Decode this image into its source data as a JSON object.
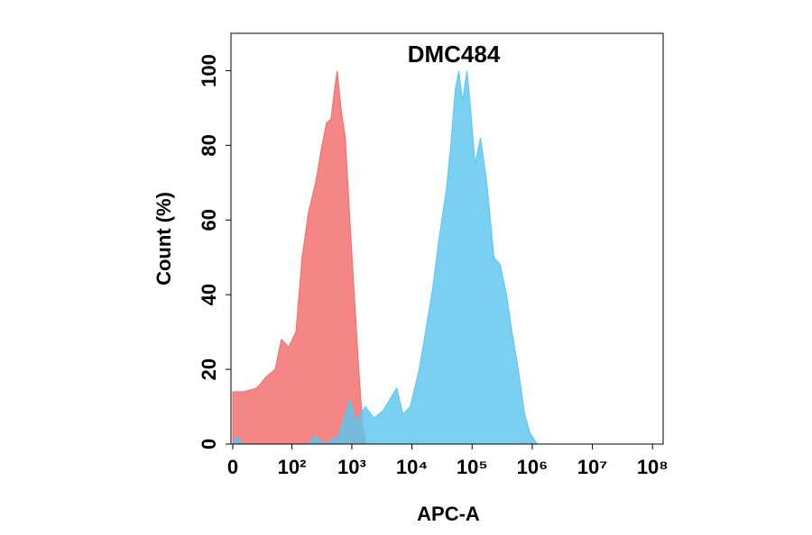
{
  "chart_data": {
    "type": "histogram-overlay",
    "title": "DMC484",
    "x_label": "APC-A",
    "y_label": "Count  (%)",
    "xscale": "biexponential",
    "xlim": [
      0,
      150000000
    ],
    "ylim": [
      0,
      110
    ],
    "xticks": [
      0,
      {
        "value": 100,
        "label": "10²"
      },
      {
        "value": 1000,
        "label": "10³"
      },
      {
        "value": 10000,
        "label": "10⁴"
      },
      {
        "value": 100000,
        "label": "10⁵"
      },
      {
        "value": 1000000,
        "label": "10⁶"
      },
      {
        "value": 10000000,
        "label": "10⁷"
      },
      {
        "value": 100000000,
        "label": "10⁸"
      }
    ],
    "yticks": [
      0,
      20,
      40,
      60,
      80,
      100
    ],
    "series": [
      {
        "color": "#f26b6b",
        "x": [
          0,
          9,
          22,
          35,
          51,
          66,
          88,
          117,
          148,
          190,
          250,
          319,
          379,
          450,
          517,
          573,
          658,
          781,
          929,
          1100,
          1310,
          1510,
          1730
        ],
        "values": [
          14,
          14,
          15,
          18,
          20,
          28,
          26,
          30,
          50,
          62,
          70,
          80,
          86,
          87,
          95,
          100,
          90,
          82,
          60,
          40,
          20,
          5,
          0
        ]
      },
      {
        "color": "#5cc6ee",
        "x": [
          0,
          3,
          9,
          177,
          250,
          353,
          593,
          929,
          1180,
          1670,
          2360,
          3320,
          5580,
          7100,
          9360,
          13200,
          16800,
          22200,
          28200,
          37200,
          44200,
          52500,
          60300,
          69200,
          82200,
          94400,
          112000,
          138000,
          176000,
          231000,
          294000,
          375000,
          461000,
          587000,
          748000,
          919000,
          1211000
        ],
        "values": [
          0,
          2,
          0,
          0,
          2,
          0,
          2,
          12,
          6,
          10,
          7,
          9,
          15,
          8,
          10,
          20,
          30,
          42,
          55,
          68,
          80,
          95,
          100,
          92,
          100,
          90,
          75,
          82,
          70,
          50,
          48,
          40,
          30,
          20,
          8,
          3,
          0
        ]
      }
    ]
  }
}
